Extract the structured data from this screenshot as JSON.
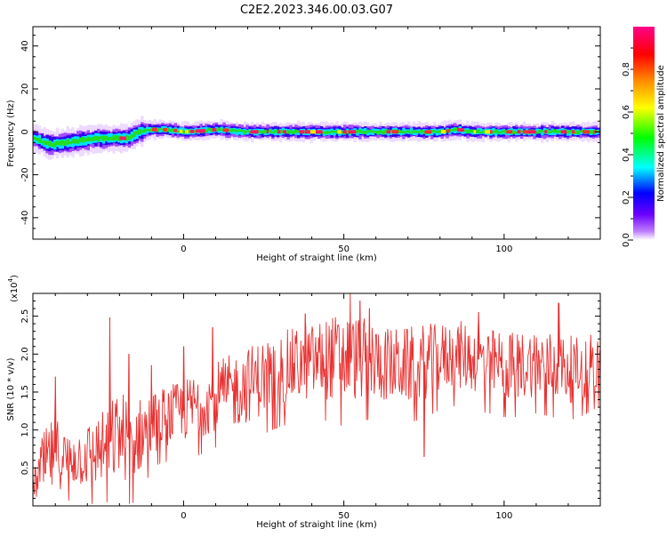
{
  "title": "C2E2.2023.346.00.03.G07",
  "chart_data": [
    {
      "type": "heatmap",
      "xlabel": "Height of straight line (km)",
      "ylabel": "Frequency (Hz)",
      "xlim": [
        -47,
        130
      ],
      "ylim": [
        -50,
        49
      ],
      "x_ticks": [
        0,
        50,
        100
      ],
      "x_tick_labels": [
        "0",
        "50",
        "100"
      ],
      "y_ticks": [
        -40,
        -20,
        0,
        20,
        40
      ],
      "y_tick_labels": [
        "-40",
        "-20",
        "0",
        "20",
        "40"
      ],
      "grid": false,
      "trace_center_hz": [
        [
          -47,
          -3
        ],
        [
          -42,
          -6
        ],
        [
          -37,
          -5
        ],
        [
          -32,
          -4
        ],
        [
          -27,
          -3
        ],
        [
          -22,
          -3
        ],
        [
          -18,
          -3
        ],
        [
          -14,
          0
        ],
        [
          -10,
          1
        ],
        [
          -5,
          1
        ],
        [
          0,
          0
        ],
        [
          10,
          1
        ],
        [
          20,
          0
        ],
        [
          40,
          0
        ],
        [
          60,
          0
        ],
        [
          80,
          0
        ],
        [
          85,
          1
        ],
        [
          90,
          0
        ],
        [
          100,
          0
        ],
        [
          120,
          0
        ],
        [
          130,
          0
        ]
      ],
      "colorbar": {
        "label": "Normalized spectral amplitude",
        "range": [
          0,
          1
        ],
        "ticks": [
          0.0,
          0.2,
          0.4,
          0.6,
          0.8
        ],
        "tick_labels": [
          "0.0",
          "0.2",
          "0.4",
          "0.6",
          "0.8"
        ],
        "colors": [
          "#ffffff",
          "#8800ff",
          "#0000ff",
          "#00ffff",
          "#00ff00",
          "#ffff00",
          "#ff8800",
          "#ff0000",
          "#ff0088"
        ]
      }
    },
    {
      "type": "line",
      "xlabel": "Height of straight line (km)",
      "ylabel": "SNR (10 * v/v)",
      "scale_label": "(x10",
      "scale_exponent": "4",
      "scale_close": ")",
      "xlim": [
        -47,
        130
      ],
      "ylim": [
        0,
        28000
      ],
      "x_ticks": [
        0,
        50,
        100
      ],
      "x_tick_labels": [
        "0",
        "50",
        "100"
      ],
      "y_ticks": [
        5000,
        10000,
        15000,
        20000,
        25000
      ],
      "y_tick_labels": [
        "0.5",
        "1.0",
        "1.5",
        "2.0",
        "2.5"
      ],
      "series": [
        {
          "color": "#e83030",
          "x": [
            -47,
            -44,
            -40,
            -36,
            -32,
            -28,
            -24,
            -20,
            -16,
            -12,
            -8,
            -4,
            0,
            5,
            10,
            15,
            20,
            25,
            30,
            35,
            40,
            45,
            50,
            55,
            60,
            65,
            70,
            75,
            80,
            85,
            90,
            95,
            100,
            105,
            110,
            115,
            120,
            125,
            130
          ],
          "y": [
            2500,
            5000,
            7000,
            6000,
            6500,
            7000,
            8000,
            9500,
            8500,
            10000,
            11500,
            12000,
            12500,
            13500,
            14500,
            15000,
            16000,
            17000,
            18000,
            18500,
            19000,
            19500,
            19500,
            19500,
            19000,
            18500,
            18500,
            19000,
            19500,
            20000,
            19500,
            19000,
            18500,
            18500,
            19000,
            18500,
            18000,
            18000,
            18500
          ],
          "spread": [
            1500,
            4500,
            5000,
            3500,
            4000,
            4500,
            5000,
            6000,
            5500,
            4500,
            4000,
            4000,
            4000,
            4500,
            4500,
            5000,
            5000,
            5000,
            5000,
            5000,
            5000,
            5500,
            6000,
            5500,
            5000,
            5000,
            5000,
            5000,
            4500,
            4500,
            4500,
            4500,
            4500,
            4500,
            4500,
            4500,
            4500,
            4000,
            3500
          ],
          "peaks": [
            [
              -40,
              17000
            ],
            [
              -23,
              24800
            ],
            [
              -17,
              20000
            ],
            [
              -10,
              18500
            ],
            [
              0,
              21000
            ],
            [
              9,
              23500
            ],
            [
              38,
              25300
            ],
            [
              52,
              28000
            ],
            [
              55,
              27000
            ],
            [
              58,
              26000
            ],
            [
              75,
              6500
            ],
            [
              92,
              25500
            ],
            [
              117,
              26700
            ],
            [
              127,
              22500
            ]
          ]
        }
      ]
    }
  ]
}
